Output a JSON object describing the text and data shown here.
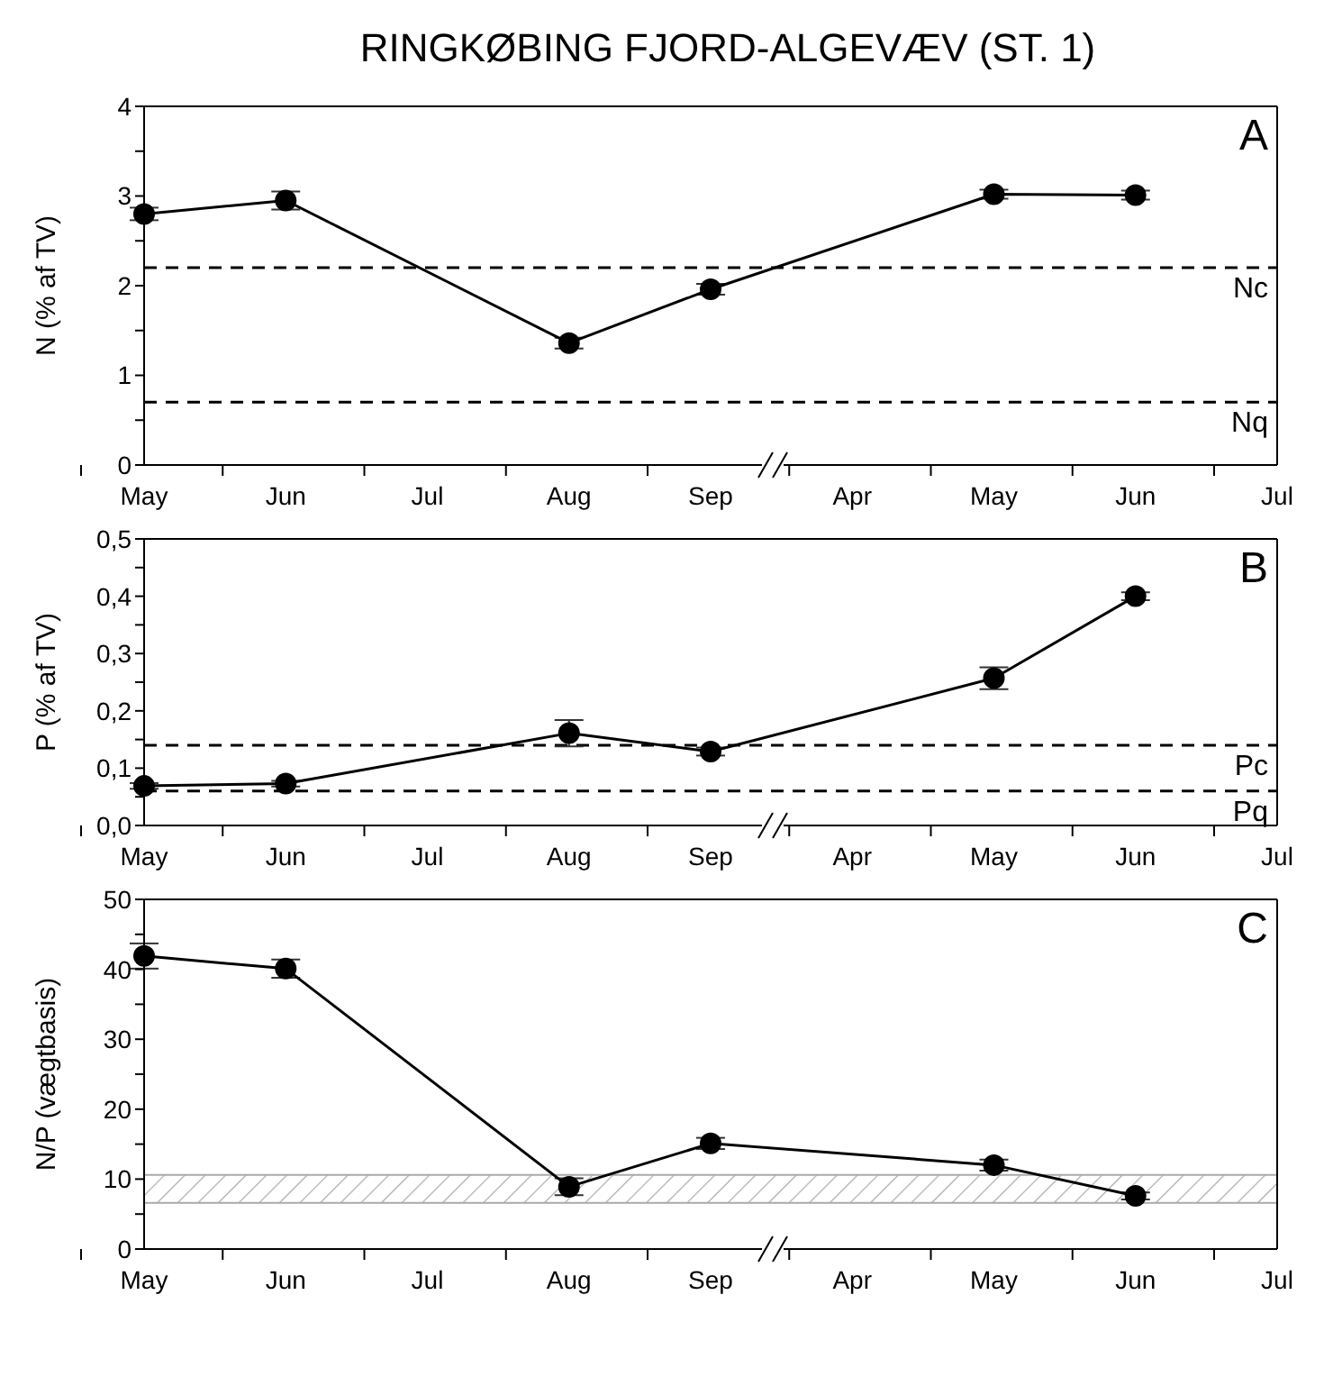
{
  "chart_data": [
    {
      "type": "line",
      "title": "RINGKØBING FJORD-ALGEVÆV (ST. 1)",
      "ylabel": "N (% af TV)",
      "annotations": [
        "A"
      ],
      "categories": [
        "May",
        "Jun",
        "Jul",
        "Aug",
        "Sep",
        "Apr",
        "May",
        "Jun",
        "Jul"
      ],
      "series": [
        {
          "color": "#000000",
          "values": [
            2.8,
            2.95,
            null,
            1.36,
            1.96,
            null,
            3.02,
            3.01,
            null
          ],
          "errors": [
            0.07,
            0.1,
            null,
            0.06,
            0.06,
            null,
            0.05,
            0.05,
            null
          ]
        }
      ],
      "ylim": [
        0,
        4
      ],
      "yticks": [
        0,
        {
          "value": 0.5,
          "label": null
        },
        1,
        {
          "value": 1.5,
          "label": null
        },
        2,
        {
          "value": 2.5,
          "label": null
        },
        3,
        {
          "value": 3.5,
          "label": null
        },
        4
      ],
      "ref_lines": [
        {
          "axis": "y",
          "value": 2.2,
          "label": "Nc",
          "color": "#000000",
          "line_style": "dashed"
        },
        {
          "axis": "y",
          "value": 0.7,
          "label": "Nq",
          "color": "#000000",
          "line_style": "dashed"
        }
      ],
      "marker": "circle",
      "line_style": "solid"
    },
    {
      "type": "line",
      "ylabel": "P (% af TV)",
      "annotations": [
        "B"
      ],
      "categories": [
        "May",
        "Jun",
        "Jul",
        "Aug",
        "Sep",
        "Apr",
        "May",
        "Jun",
        "Jul"
      ],
      "series": [
        {
          "color": "#000000",
          "values": [
            0.069,
            0.073,
            null,
            0.161,
            0.129,
            null,
            0.257,
            0.4,
            null
          ],
          "errors": [
            0.005,
            0.005,
            null,
            0.023,
            0.007,
            null,
            0.019,
            0.007,
            null
          ]
        }
      ],
      "ylim": [
        0,
        0.5
      ],
      "yticks": [
        {
          "value": 0,
          "label": "0,0"
        },
        {
          "value": 0.05,
          "label": null
        },
        {
          "value": 0.1,
          "label": "0,1"
        },
        {
          "value": 0.15,
          "label": null
        },
        {
          "value": 0.2,
          "label": "0,2"
        },
        {
          "value": 0.25,
          "label": null
        },
        {
          "value": 0.3,
          "label": "0,3"
        },
        {
          "value": 0.35,
          "label": null
        },
        {
          "value": 0.4,
          "label": "0,4"
        },
        {
          "value": 0.45,
          "label": null
        },
        {
          "value": 0.5,
          "label": "0,5"
        }
      ],
      "ref_lines": [
        {
          "axis": "y",
          "value": 0.14,
          "label": "Pc",
          "color": "#000000",
          "line_style": "dashed"
        },
        {
          "axis": "y",
          "value": 0.06,
          "label": "Pq",
          "color": "#000000",
          "line_style": "dashed"
        }
      ],
      "marker": "circle",
      "line_style": "solid"
    },
    {
      "type": "line",
      "ylabel": "N/P (vægtbasis)",
      "annotations": [
        "C"
      ],
      "categories": [
        "May",
        "Jun",
        "Jul",
        "Aug",
        "Sep",
        "Apr",
        "May",
        "Jun",
        "Jul"
      ],
      "series": [
        {
          "color": "#000000",
          "values": [
            41.9,
            40.1,
            null,
            8.9,
            15.1,
            null,
            12,
            7.6,
            null
          ],
          "errors": [
            1.8,
            1.3,
            null,
            1.2,
            0.8,
            null,
            0.8,
            0.5,
            null
          ]
        }
      ],
      "ylim": [
        0,
        50
      ],
      "yticks": [
        0,
        {
          "value": 5,
          "label": null
        },
        10,
        {
          "value": 15,
          "label": null
        },
        20,
        {
          "value": 25,
          "label": null
        },
        30,
        {
          "value": 35,
          "label": null
        },
        40,
        {
          "value": 45,
          "label": null
        },
        50
      ],
      "bands": [
        {
          "axis": "y",
          "from": 6.6,
          "to": 10.6,
          "color": "#aaaaaa"
        }
      ],
      "marker": "circle",
      "line_style": "solid"
    }
  ]
}
